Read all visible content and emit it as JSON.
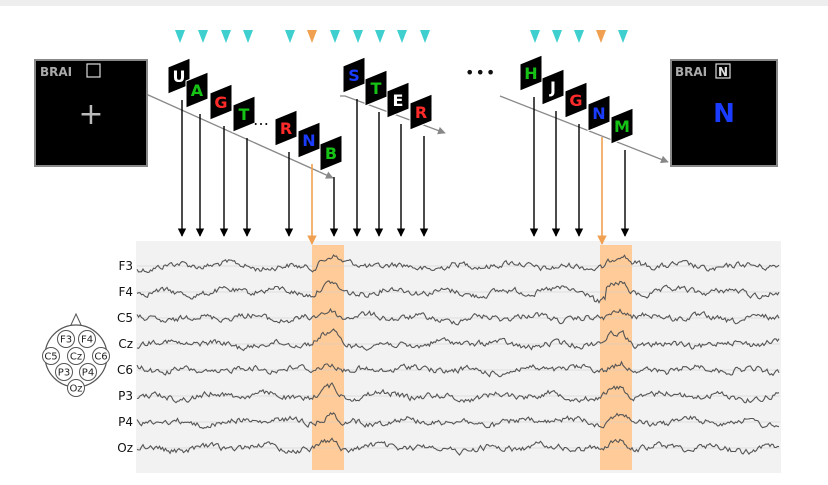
{
  "colors": {
    "cue_arrow": "#3fcfcf",
    "target_cue": "#f0a050",
    "eeg_trace": "#555555",
    "highlight": "#ffcc99",
    "eeg_background": "#f2f2f2",
    "screen_background": "#000000",
    "red": "#ff2a2a",
    "green": "#16c216",
    "blue": "#1a3cff",
    "white": "#ffffff"
  },
  "screens": {
    "start": {
      "title": "BRAI",
      "typed_letter": "",
      "center_symbol": "+"
    },
    "end": {
      "title": "BRAI",
      "typed_letter": "N",
      "center_symbol": "N"
    }
  },
  "sequences": [
    {
      "cards": [
        {
          "letter": "U",
          "color": "white"
        },
        {
          "letter": "A",
          "color": "green"
        },
        {
          "letter": "G",
          "color": "red"
        },
        {
          "letter": "T",
          "color": "green"
        },
        {
          "letter": "R",
          "color": "red"
        },
        {
          "letter": "N",
          "color": "blue"
        },
        {
          "letter": "B",
          "color": "green"
        }
      ],
      "target_index": 5
    },
    {
      "cards": [
        {
          "letter": "S",
          "color": "blue"
        },
        {
          "letter": "T",
          "color": "green"
        },
        {
          "letter": "E",
          "color": "white"
        },
        {
          "letter": "R",
          "color": "red"
        }
      ],
      "target_index": -1
    },
    {
      "cards": [
        {
          "letter": "H",
          "color": "green"
        },
        {
          "letter": "J",
          "color": "white"
        },
        {
          "letter": "G",
          "color": "red"
        },
        {
          "letter": "N",
          "color": "blue"
        },
        {
          "letter": "M",
          "color": "green"
        }
      ],
      "target_index": 3
    }
  ],
  "gaps": {
    "sequence_gap": "…",
    "between_sequences": "•••"
  },
  "eeg": {
    "channels": [
      "F3",
      "F4",
      "C5",
      "Cz",
      "C6",
      "P3",
      "P4",
      "Oz"
    ]
  },
  "head_map": {
    "electrodes": [
      "F3",
      "F4",
      "C5",
      "Cz",
      "C6",
      "P3",
      "P4",
      "Oz"
    ]
  }
}
